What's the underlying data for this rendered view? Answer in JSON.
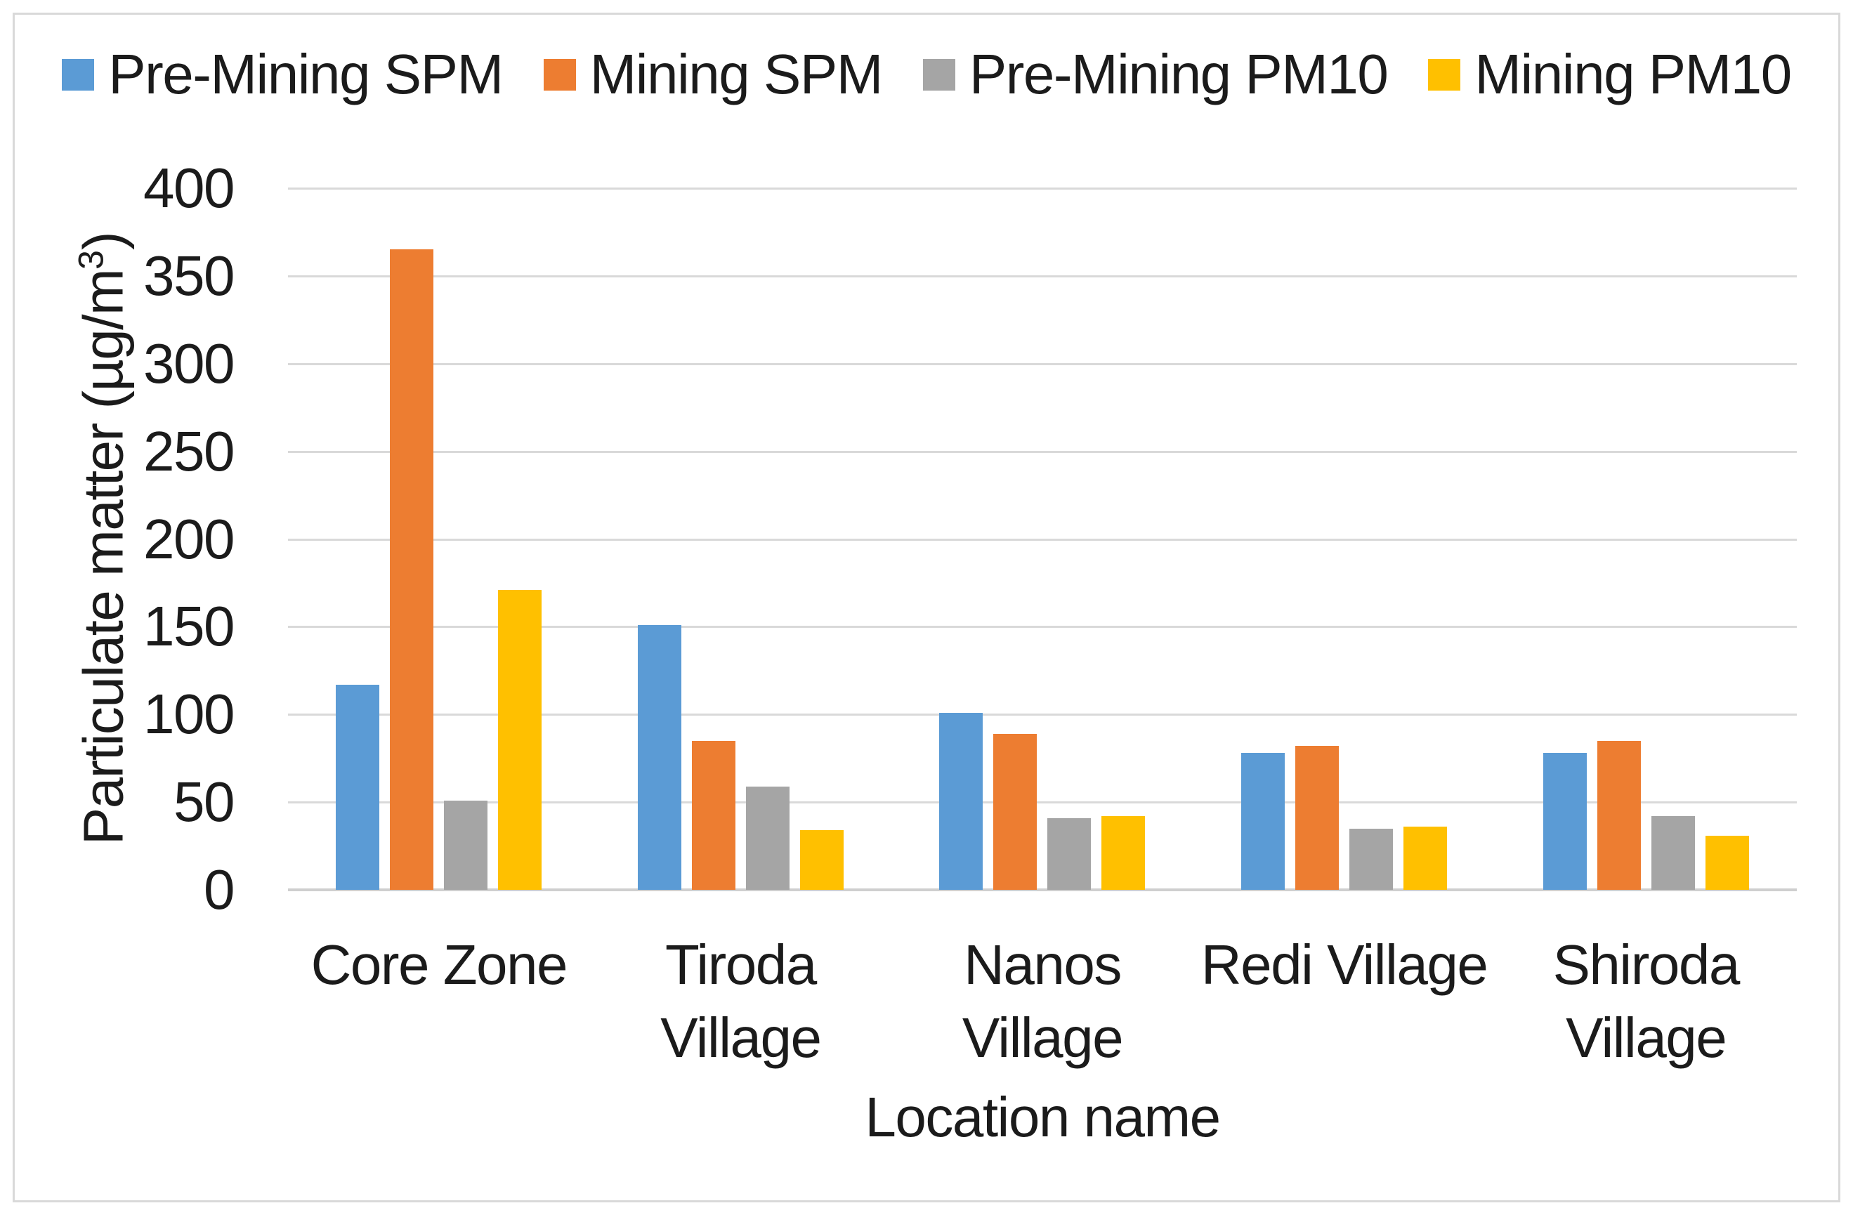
{
  "y_axis": {
    "title_prefix": "Particulate matter (µg/m",
    "title_sup": "3",
    "title_suffix": ")"
  },
  "x_axis": {
    "title": "Location name"
  },
  "chart_data": {
    "type": "bar",
    "title": "",
    "categories": [
      "Core Zone",
      "Tiroda Village",
      "Nanos Village",
      "Redi Village",
      "Shiroda Village"
    ],
    "series": [
      {
        "name": "Pre-Mining SPM",
        "color": "#5B9BD5",
        "values": [
          117,
          151,
          101,
          78,
          78
        ]
      },
      {
        "name": "Mining SPM",
        "color": "#ED7D31",
        "values": [
          365,
          85,
          89,
          82,
          85
        ]
      },
      {
        "name": "Pre-Mining PM10",
        "color": "#A5A5A5",
        "values": [
          51,
          59,
          41,
          35,
          42
        ]
      },
      {
        "name": "Mining PM10",
        "color": "#FFC000",
        "values": [
          171,
          34,
          42,
          36,
          31
        ]
      }
    ],
    "xlabel": "Location name",
    "ylabel": "Particulate matter (µg/m³)",
    "ylim": [
      0,
      400
    ],
    "yticks": [
      0,
      50,
      100,
      150,
      200,
      250,
      300,
      350,
      400
    ],
    "grid": true,
    "legend_position": "top",
    "category_label_lines": [
      [
        "Core Zone"
      ],
      [
        "Tiroda",
        "Village"
      ],
      [
        "Nanos",
        "Village"
      ],
      [
        "Redi Village"
      ],
      [
        "Shiroda",
        "Village"
      ]
    ],
    "colors": {
      "gridline": "#D9D9D9",
      "axis_baseline": "#CFCFCF",
      "text": "#1B1B1B",
      "frame_border": "#D9D9D9",
      "background": "#FFFFFF"
    }
  }
}
